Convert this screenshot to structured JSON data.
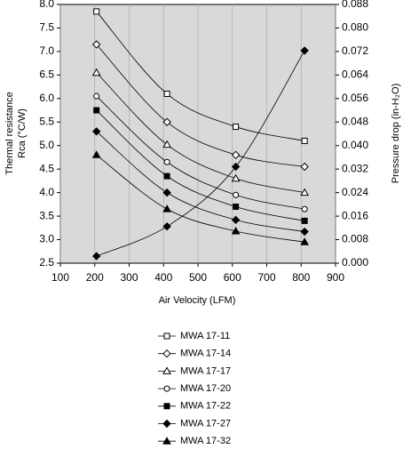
{
  "chart_data": {
    "type": "line",
    "x": [
      205,
      410,
      610,
      810
    ],
    "xlabel": "Air Velocity (LFM)",
    "ylabel": [
      "Thermal resistance",
      "Rca (°C/W)"
    ],
    "y2label": "Pressure drop (in-H₂O)",
    "xlim": [
      100,
      900
    ],
    "xticks": [
      100,
      200,
      300,
      400,
      500,
      600,
      700,
      800,
      900
    ],
    "ylim": [
      2.5,
      8
    ],
    "yticks": [
      2.5,
      {
        "value": 3,
        "label": "3.0"
      },
      3.5,
      {
        "value": 4,
        "label": "4.0"
      },
      4.5,
      {
        "value": 5,
        "label": "5.0"
      },
      5.5,
      {
        "value": 6,
        "label": "6.0"
      },
      6.5,
      {
        "value": 7,
        "label": "7.0"
      },
      7.5,
      {
        "value": 8,
        "label": "8.0"
      }
    ],
    "y2lim": [
      0,
      0.088
    ],
    "y2ticks": [
      {
        "value": 0,
        "label": "0.000"
      },
      0.008,
      0.016,
      0.024,
      0.032,
      {
        "value": 0.04,
        "label": "0.040"
      },
      0.048,
      0.056,
      0.064,
      0.072,
      {
        "value": 0.08,
        "label": "0.080"
      },
      0.088
    ],
    "grid": true,
    "series": [
      {
        "name": "MWA 17-11",
        "color": "#000000",
        "marker": "square",
        "filled": false,
        "values": [
          7.85,
          6.1,
          5.4,
          5.1
        ]
      },
      {
        "name": "MWA 17-14",
        "color": "#000000",
        "marker": "diamond",
        "filled": false,
        "values": [
          7.15,
          5.5,
          4.8,
          4.55
        ]
      },
      {
        "name": "MWA 17-17",
        "color": "#000000",
        "marker": "triangle",
        "filled": false,
        "values": [
          6.55,
          5.02,
          4.3,
          4.0
        ]
      },
      {
        "name": "MWA 17-20",
        "color": "#000000",
        "marker": "circle",
        "filled": false,
        "values": [
          6.05,
          4.65,
          3.95,
          3.65
        ]
      },
      {
        "name": "MWA 17-22",
        "color": "#000000",
        "marker": "square",
        "filled": true,
        "values": [
          5.75,
          4.35,
          3.7,
          3.4
        ]
      },
      {
        "name": "MWA 17-27",
        "color": "#000000",
        "marker": "diamond",
        "filled": true,
        "values": [
          5.3,
          4.0,
          3.42,
          3.17
        ]
      },
      {
        "name": "MWA 17-32",
        "color": "#000000",
        "marker": "triangle",
        "filled": true,
        "values": [
          4.8,
          3.65,
          3.18,
          2.95
        ]
      },
      {
        "color": "#000000",
        "marker": "diamond",
        "filled": true,
        "axis": "y2",
        "values": [
          0.0024,
          0.0125,
          0.0328,
          0.0723
        ]
      }
    ]
  }
}
